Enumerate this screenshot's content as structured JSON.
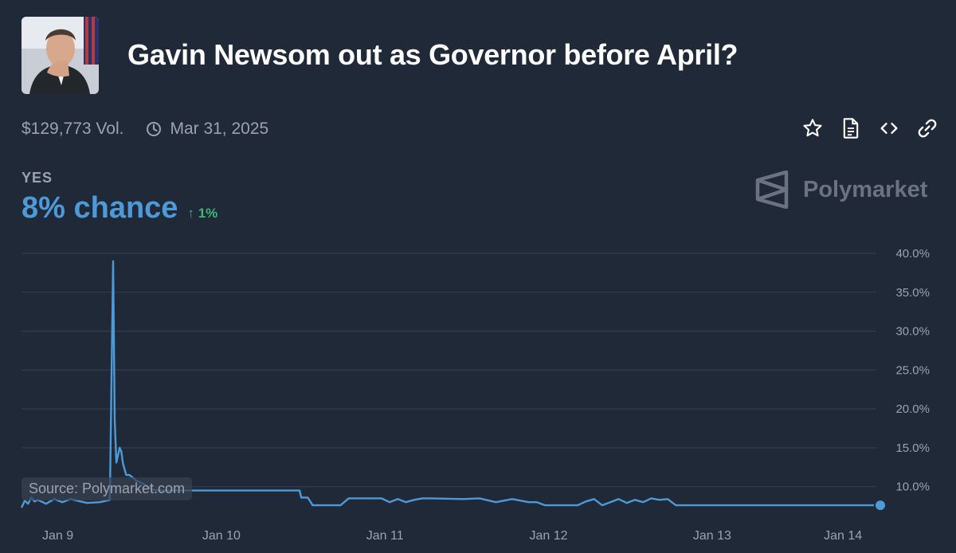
{
  "header": {
    "title": "Gavin Newsom out as Governor before April?",
    "volume": "$129,773 Vol.",
    "end_date": "Mar 31, 2025"
  },
  "icons": {
    "avatar": "portrait-photo",
    "clock": "clock-icon",
    "actions": [
      "star-icon",
      "document-icon",
      "code-icon",
      "link-icon"
    ]
  },
  "outcome": {
    "label": "YES",
    "chance": "8% chance",
    "change": "1%",
    "change_direction": "up"
  },
  "brand": {
    "name": "Polymarket"
  },
  "source": "Source: Polymarket.com",
  "colors": {
    "background": "#1f2937",
    "line": "#4e9ad9",
    "positive": "#3cb878",
    "muted": "#9ca3af"
  },
  "chart_data": {
    "type": "line",
    "xlabel": "",
    "ylabel": "",
    "x_tick_labels": [
      "Jan 9",
      "Jan 10",
      "Jan 11",
      "Jan 12",
      "Jan 13",
      "Jan 14"
    ],
    "y_tick_labels": [
      "40.0%",
      "35.0%",
      "30.0%",
      "25.0%",
      "20.0%",
      "15.0%",
      "10.0%"
    ],
    "y_ticks": [
      40,
      35,
      30,
      25,
      20,
      15,
      10
    ],
    "ylim": [
      7,
      40
    ],
    "grid": true,
    "legend": "none",
    "series": [
      {
        "x": [
          8.9,
          8.92,
          8.94,
          8.96,
          8.98,
          9.0,
          9.05,
          9.1,
          9.15,
          9.2,
          9.3,
          9.38,
          9.44,
          9.46,
          9.47,
          9.48,
          9.5,
          9.51,
          9.52,
          9.54,
          9.56,
          9.6,
          9.65,
          9.7,
          9.75,
          9.8,
          9.9,
          10.0,
          10.2,
          10.4,
          10.6,
          10.61,
          10.65,
          10.68,
          10.7,
          10.85,
          10.9,
          10.95,
          11.1,
          11.15,
          11.2,
          11.25,
          11.3,
          11.35,
          11.4,
          11.6,
          11.7,
          11.8,
          11.9,
          12.0,
          12.05,
          12.1,
          12.3,
          12.35,
          12.4,
          12.45,
          12.5,
          12.55,
          12.6,
          12.65,
          12.7,
          12.75,
          12.8,
          12.85,
          12.9,
          13.0,
          13.2,
          13.5,
          13.8,
          14.0,
          14.15
        ],
        "y": [
          7.3,
          8.2,
          7.8,
          8.6,
          8.1,
          8.3,
          7.8,
          8.4,
          8.0,
          8.4,
          7.9,
          8.0,
          8.3,
          39.0,
          18.5,
          13.1,
          15.0,
          14.5,
          13.0,
          11.5,
          11.5,
          10.8,
          10.3,
          9.6,
          9.5,
          9.5,
          9.5,
          9.5,
          9.5,
          9.5,
          9.5,
          8.6,
          8.6,
          7.6,
          7.6,
          7.6,
          8.5,
          8.5,
          8.5,
          8.0,
          8.4,
          8.0,
          8.3,
          8.5,
          8.5,
          8.4,
          8.5,
          8.0,
          8.4,
          8.0,
          8.0,
          7.6,
          7.6,
          8.1,
          8.4,
          7.6,
          8.0,
          8.4,
          7.9,
          8.3,
          8.0,
          8.5,
          8.3,
          8.4,
          7.6,
          7.6,
          7.6,
          7.6,
          7.6,
          7.6,
          7.6
        ]
      }
    ]
  }
}
